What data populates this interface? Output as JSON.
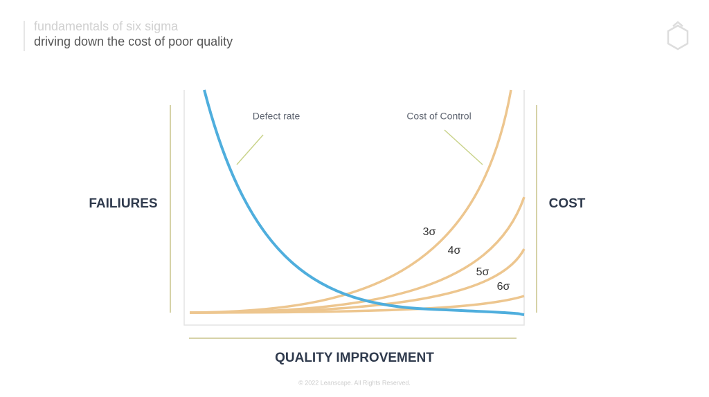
{
  "header": {
    "title": "fundamentals of six sigma",
    "subtitle": "driving down the cost of poor quality"
  },
  "axes": {
    "left": "FAILIURES",
    "right": "COST",
    "bottom": "QUALITY IMPROVEMENT"
  },
  "annotations": [
    "Defect rate",
    "Cost of Control"
  ],
  "curve_labels": [
    "3σ",
    "4σ",
    "5σ",
    "6σ"
  ],
  "footer": "© 2022 Leanscape. All Rights Reserved."
}
